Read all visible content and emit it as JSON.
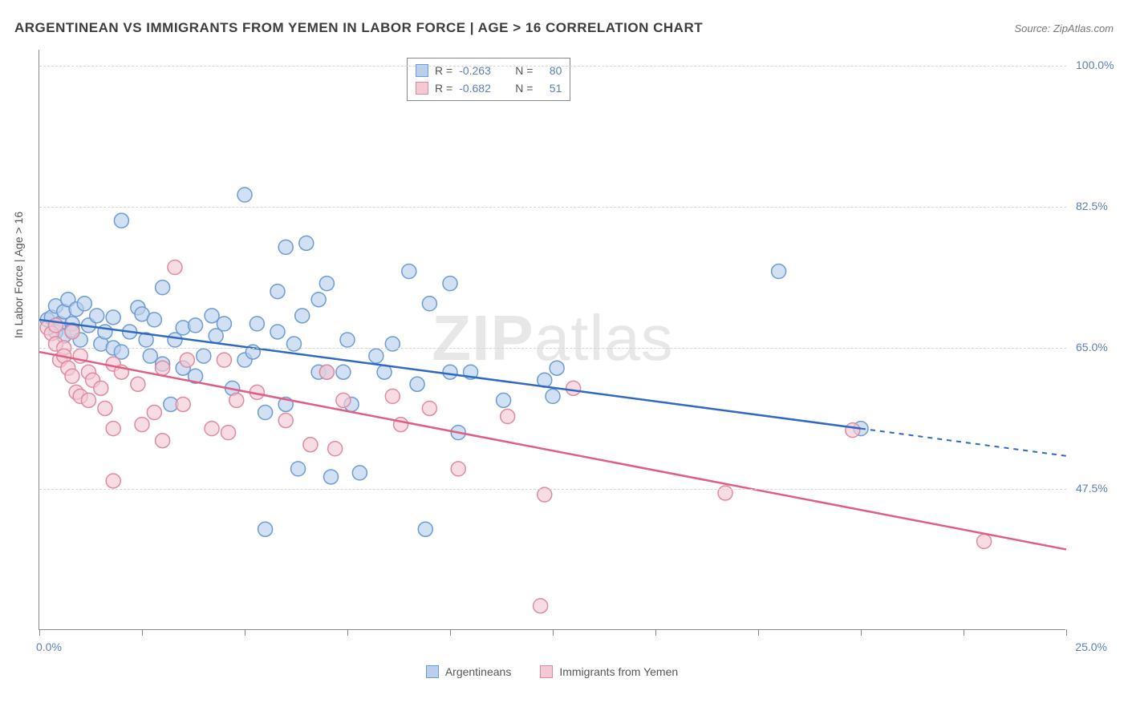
{
  "title": "ARGENTINEAN VS IMMIGRANTS FROM YEMEN IN LABOR FORCE | AGE > 16 CORRELATION CHART",
  "source": "Source: ZipAtlas.com",
  "watermark_bold": "ZIP",
  "watermark_light": "atlas",
  "chart": {
    "type": "scatter",
    "background_color": "#ffffff",
    "grid_color": "#d5d5d5",
    "axis_color": "#888888",
    "y_axis_title": "In Labor Force | Age > 16",
    "xlim": [
      0,
      25
    ],
    "ylim": [
      30,
      102
    ],
    "xtick_positions": [
      0.0,
      2.5,
      5.0,
      7.5,
      10.0,
      12.5,
      15.0,
      17.5,
      20.0,
      22.5,
      25.0
    ],
    "x_label_lo": "0.0%",
    "x_label_hi": "25.0%",
    "ytick_positions": [
      47.5,
      65.0,
      82.5,
      100.0
    ],
    "ytick_labels": [
      "47.5%",
      "65.0%",
      "82.5%",
      "100.0%"
    ],
    "ylabel_color": "#5b7fb8",
    "marker_radius": 9,
    "marker_stroke_width": 1.5,
    "line_width": 2.5,
    "series": [
      {
        "name": "Argentineans",
        "fill": "#b8d0ec",
        "stroke": "#6d9cd4",
        "line_color": "#2f6ac0",
        "r_label": "R = ",
        "r_value": "-0.263",
        "n_label": "N = ",
        "n_value": "80",
        "trend_x1": 0.0,
        "trend_y1": 68.5,
        "trend_x2": 20.0,
        "trend_y2": 55.0,
        "extrap_x2": 25.0,
        "extrap_y2": 51.6,
        "points": [
          [
            0.2,
            68.5
          ],
          [
            0.3,
            68.8
          ],
          [
            0.4,
            70.2
          ],
          [
            0.4,
            67.0
          ],
          [
            0.5,
            68.0
          ],
          [
            0.6,
            69.5
          ],
          [
            0.6,
            66.5
          ],
          [
            0.7,
            71.0
          ],
          [
            0.8,
            68.0
          ],
          [
            0.8,
            67.2
          ],
          [
            0.9,
            69.8
          ],
          [
            1.0,
            66.0
          ],
          [
            1.1,
            70.5
          ],
          [
            1.2,
            67.8
          ],
          [
            1.4,
            69.0
          ],
          [
            1.5,
            65.5
          ],
          [
            1.6,
            67.0
          ],
          [
            1.8,
            68.8
          ],
          [
            1.8,
            65.0
          ],
          [
            2.0,
            80.8
          ],
          [
            2.0,
            64.5
          ],
          [
            2.2,
            67.0
          ],
          [
            2.4,
            70.0
          ],
          [
            2.5,
            69.2
          ],
          [
            2.6,
            66.0
          ],
          [
            2.7,
            64.0
          ],
          [
            2.8,
            68.5
          ],
          [
            3.0,
            63.0
          ],
          [
            3.0,
            72.5
          ],
          [
            3.2,
            58.0
          ],
          [
            3.3,
            66.0
          ],
          [
            3.5,
            67.5
          ],
          [
            3.5,
            62.5
          ],
          [
            3.8,
            61.5
          ],
          [
            3.8,
            67.8
          ],
          [
            4.0,
            64.0
          ],
          [
            4.2,
            69.0
          ],
          [
            4.3,
            66.5
          ],
          [
            4.5,
            68.0
          ],
          [
            4.7,
            60.0
          ],
          [
            5.0,
            84.0
          ],
          [
            5.0,
            63.5
          ],
          [
            5.2,
            64.5
          ],
          [
            5.3,
            68.0
          ],
          [
            5.5,
            42.5
          ],
          [
            5.5,
            57.0
          ],
          [
            5.8,
            67.0
          ],
          [
            5.8,
            72.0
          ],
          [
            6.0,
            77.5
          ],
          [
            6.0,
            58.0
          ],
          [
            6.2,
            65.5
          ],
          [
            6.3,
            50.0
          ],
          [
            6.4,
            69.0
          ],
          [
            6.5,
            78.0
          ],
          [
            6.8,
            71.0
          ],
          [
            6.8,
            62.0
          ],
          [
            7.0,
            62.0
          ],
          [
            7.0,
            73.0
          ],
          [
            7.1,
            49.0
          ],
          [
            7.4,
            62.0
          ],
          [
            7.5,
            66.0
          ],
          [
            7.6,
            58.0
          ],
          [
            7.8,
            49.5
          ],
          [
            8.2,
            64.0
          ],
          [
            8.4,
            62.0
          ],
          [
            8.6,
            65.5
          ],
          [
            9.0,
            74.5
          ],
          [
            9.2,
            60.5
          ],
          [
            9.4,
            42.5
          ],
          [
            9.5,
            70.5
          ],
          [
            10.0,
            73.0
          ],
          [
            10.0,
            62.0
          ],
          [
            10.2,
            54.5
          ],
          [
            10.5,
            62.0
          ],
          [
            11.3,
            58.5
          ],
          [
            12.3,
            61.0
          ],
          [
            12.5,
            59.0
          ],
          [
            12.6,
            62.5
          ],
          [
            18.0,
            74.5
          ],
          [
            20.0,
            55.0
          ]
        ]
      },
      {
        "name": "Immigrants from Yemen",
        "fill": "#f4c9d4",
        "stroke": "#e08aa0",
        "line_color": "#df5e84",
        "r_label": "R = ",
        "r_value": "-0.682",
        "n_label": "N = ",
        "n_value": "51",
        "trend_x1": 0.0,
        "trend_y1": 64.5,
        "trend_x2": 25.0,
        "trend_y2": 40.0,
        "extrap_x2": 25.0,
        "extrap_y2": 40.0,
        "points": [
          [
            0.2,
            67.5
          ],
          [
            0.3,
            66.8
          ],
          [
            0.4,
            65.5
          ],
          [
            0.4,
            67.8
          ],
          [
            0.5,
            63.5
          ],
          [
            0.6,
            65.0
          ],
          [
            0.6,
            64.0
          ],
          [
            0.7,
            62.5
          ],
          [
            0.8,
            67.0
          ],
          [
            0.8,
            61.5
          ],
          [
            0.9,
            59.5
          ],
          [
            1.0,
            64.0
          ],
          [
            1.0,
            59.0
          ],
          [
            1.2,
            62.0
          ],
          [
            1.2,
            58.5
          ],
          [
            1.3,
            61.0
          ],
          [
            1.5,
            60.0
          ],
          [
            1.6,
            57.5
          ],
          [
            1.8,
            63.0
          ],
          [
            1.8,
            55.0
          ],
          [
            1.8,
            48.5
          ],
          [
            2.0,
            62.0
          ],
          [
            2.4,
            60.5
          ],
          [
            2.5,
            55.5
          ],
          [
            2.8,
            57.0
          ],
          [
            3.0,
            62.5
          ],
          [
            3.0,
            53.5
          ],
          [
            3.3,
            75.0
          ],
          [
            3.5,
            58.0
          ],
          [
            3.6,
            63.5
          ],
          [
            4.2,
            55.0
          ],
          [
            4.5,
            63.5
          ],
          [
            4.6,
            54.5
          ],
          [
            4.8,
            58.5
          ],
          [
            5.3,
            59.5
          ],
          [
            6.0,
            56.0
          ],
          [
            6.6,
            53.0
          ],
          [
            7.0,
            62.0
          ],
          [
            7.2,
            52.5
          ],
          [
            7.4,
            58.5
          ],
          [
            8.6,
            59.0
          ],
          [
            8.8,
            55.5
          ],
          [
            9.5,
            57.5
          ],
          [
            10.2,
            50.0
          ],
          [
            11.4,
            56.5
          ],
          [
            12.3,
            46.8
          ],
          [
            13.0,
            60.0
          ],
          [
            16.7,
            47.0
          ],
          [
            19.8,
            54.8
          ],
          [
            23.0,
            41.0
          ],
          [
            12.2,
            33.0
          ]
        ]
      }
    ],
    "legend_bottom": [
      {
        "label": "Argentineans",
        "fill": "#b8d0ec",
        "stroke": "#6d9cd4"
      },
      {
        "label": "Immigrants from Yemen",
        "fill": "#f4c9d4",
        "stroke": "#e08aa0"
      }
    ]
  }
}
